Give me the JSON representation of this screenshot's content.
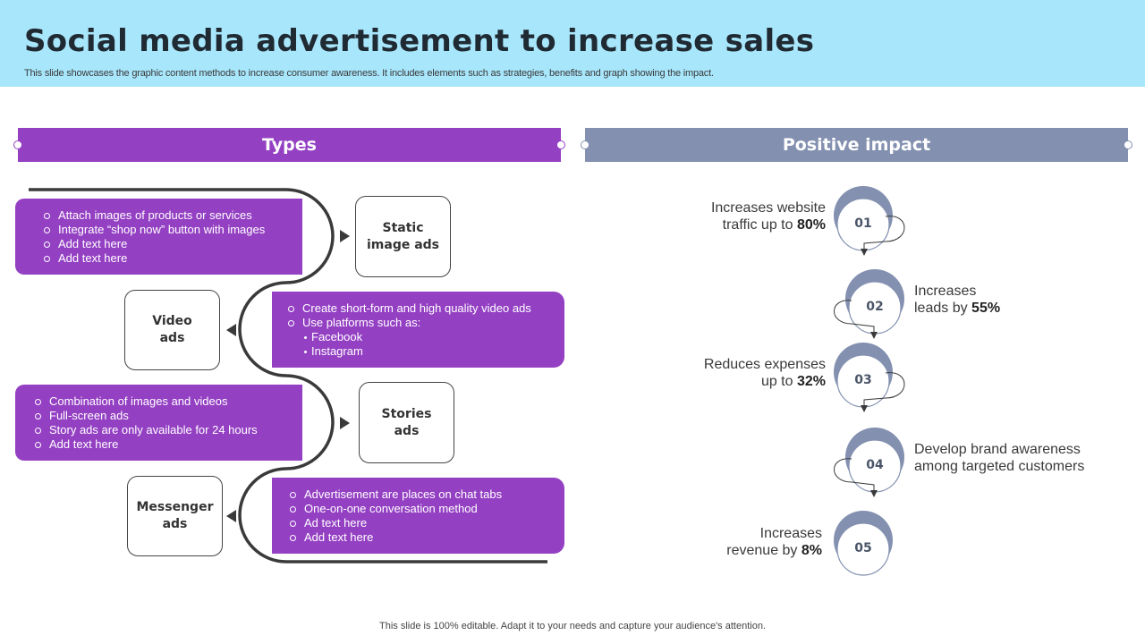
{
  "header": {
    "title": "Social media advertisement to increase sales",
    "subtitle": "This slide showcases the graphic content methods to increase consumer awareness. It includes elements such as strategies, benefits and graph showing the impact."
  },
  "types": {
    "heading": "Types",
    "items": [
      {
        "name_line1": "Static",
        "name_line2": "image ads",
        "bullets": [
          "Attach images of products or services",
          "Integrate “shop now” button with images",
          "Add text here",
          "Add text here"
        ]
      },
      {
        "name_line1": "Video",
        "name_line2": "ads",
        "bullets": [
          "Create short-form  and high quality video ads",
          "Use platforms  such as:"
        ],
        "sub_bullets": [
          "Facebook",
          "Instagram"
        ]
      },
      {
        "name_line1": "Stories",
        "name_line2": "ads",
        "bullets": [
          "Combination  of images and videos",
          "Full-screen ads",
          "Story ads are only available  for 24 hours",
          "Add text here"
        ]
      },
      {
        "name_line1": "Messenger",
        "name_line2": "ads",
        "bullets": [
          "Advertisement  are places on chat tabs",
          "One-on-one  conversation  method",
          "Ad text here",
          "Add text here"
        ]
      }
    ]
  },
  "impact": {
    "heading": "Positive impact",
    "items": [
      {
        "number": "01",
        "line1": "Increases website",
        "line2_pre": "traffic up to ",
        "value": "80%"
      },
      {
        "number": "02",
        "line1": "Increases",
        "line2_pre": "leads by ",
        "value": "55%"
      },
      {
        "number": "03",
        "line1": "Reduces expenses",
        "line2_pre": "up to ",
        "value": "32%"
      },
      {
        "number": "04",
        "line1": "Develop brand awareness",
        "line2_pre": "among targeted customers",
        "value": ""
      },
      {
        "number": "05",
        "line1": "Increases",
        "line2_pre": "revenue by ",
        "value": "8%"
      }
    ]
  },
  "footer": "This slide is 100% editable.  Adapt it to your needs and capture your audience's attention.",
  "colors": {
    "header_bg": "#a8e6fb",
    "accent_purple": "#9440c3",
    "accent_slate": "#8390b0",
    "circle_fill": "#8390b0"
  }
}
